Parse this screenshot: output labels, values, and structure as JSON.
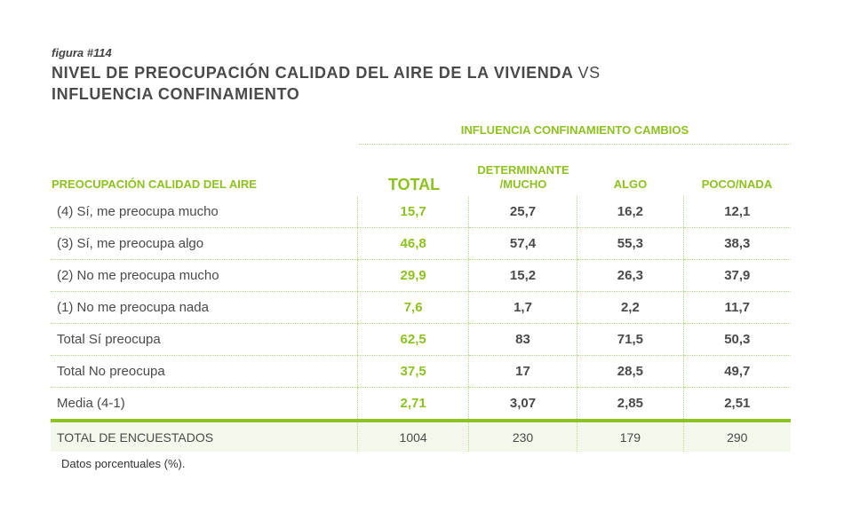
{
  "figure": "figura #114",
  "title_main": "NIVEL DE PREOCUPACIÓN CALIDAD DEL AIRE DE LA VIVIENDA",
  "title_vs": "VS",
  "title_second": "INFLUENCIA CONFINAMIENTO",
  "group_header": "INFLUENCIA CONFINAMIENTO CAMBIOS",
  "columns": {
    "label": "PREOCUPACIÓN CALIDAD DEL AIRE",
    "total": "TOTAL",
    "c1a": "DETERMINANTE",
    "c1b": "/MUCHO",
    "c2": "ALGO",
    "c3": "POCO/NADA"
  },
  "rows": [
    {
      "label": "(4) Sí, me preocupa mucho",
      "v": [
        "15,7",
        "25,7",
        "16,2",
        "12,1"
      ]
    },
    {
      "label": "(3) Sí, me preocupa algo",
      "v": [
        "46,8",
        "57,4",
        "55,3",
        "38,3"
      ]
    },
    {
      "label": "(2) No me preocupa mucho",
      "v": [
        "29,9",
        "15,2",
        "26,3",
        "37,9"
      ]
    },
    {
      "label": "(1) No me preocupa nada",
      "v": [
        "7,6",
        "1,7",
        "2,2",
        "11,7"
      ]
    },
    {
      "label": "Total Sí preocupa",
      "v": [
        "62,5",
        "83",
        "71,5",
        "50,3"
      ]
    },
    {
      "label": "Total No preocupa",
      "v": [
        "37,5",
        "17",
        "28,5",
        "49,7"
      ]
    },
    {
      "label": "Media (4-1)",
      "v": [
        "2,71",
        "3,07",
        "2,85",
        "2,51"
      ]
    }
  ],
  "total_row": {
    "label": "TOTAL DE ENCUESTADOS",
    "v": [
      "1004",
      "230",
      "179",
      "290"
    ]
  },
  "note": "Datos porcentuales (%).",
  "colors": {
    "accent": "#8dc21f",
    "text": "#4a4a4a"
  }
}
